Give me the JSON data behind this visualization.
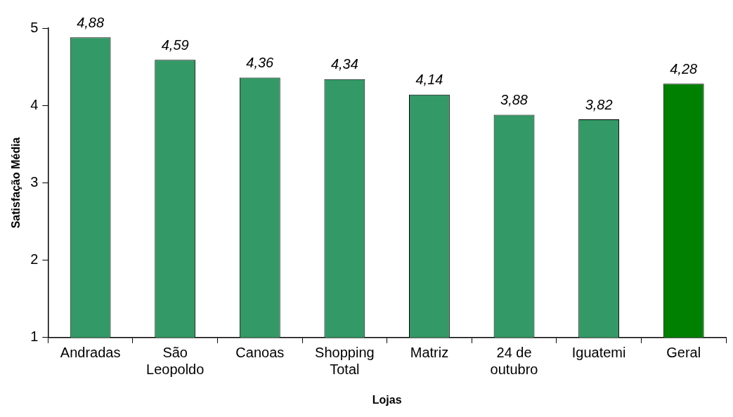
{
  "chart_data": {
    "type": "bar",
    "xlabel": "Lojas",
    "ylabel": "Satisfação Média",
    "categories": [
      "Andradas",
      "São Leopoldo",
      "Canoas",
      "Shopping Total",
      "Matriz",
      "24 de outubro",
      "Iguatemi",
      "Geral"
    ],
    "values": [
      4.88,
      4.59,
      4.36,
      4.34,
      4.14,
      3.88,
      3.82,
      4.28
    ],
    "colors": [
      "#339966",
      "#339966",
      "#339966",
      "#339966",
      "#339966",
      "#339966",
      "#339966",
      "#008000"
    ],
    "value_labels": [
      "4,88",
      "4,59",
      "4,36",
      "4,34",
      "4,14",
      "3,88",
      "3,82",
      "4,28"
    ],
    "ylim": [
      1,
      5
    ],
    "yticks": [
      1,
      2,
      3,
      4,
      5
    ],
    "grid": false,
    "legend": false
  }
}
